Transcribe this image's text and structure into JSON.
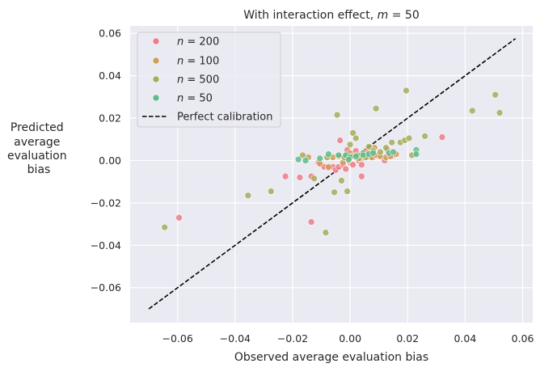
{
  "chart_data": {
    "type": "scatter",
    "title": "With interaction effect, m = 50",
    "title_prefix": "With interaction effect, ",
    "title_var": "m",
    "title_suffix": " = 50",
    "xlabel": "Observed average evaluation bias",
    "ylabel_lines": [
      "Predicted",
      "average",
      "evaluation",
      "bias"
    ],
    "xlim": [
      -0.0765,
      0.0635
    ],
    "ylim": [
      -0.0765,
      0.0635
    ],
    "xticks": [
      -0.06,
      -0.04,
      -0.02,
      0.0,
      0.02,
      0.04,
      0.06
    ],
    "xtick_labels": [
      "−0.06",
      "−0.04",
      "−0.02",
      "0.00",
      "0.02",
      "0.04",
      "0.06"
    ],
    "yticks": [
      -0.06,
      -0.04,
      -0.02,
      0.0,
      0.02,
      0.04,
      0.06
    ],
    "ytick_labels": [
      "−0.06",
      "−0.04",
      "−0.02",
      "0.00",
      "0.02",
      "0.04",
      "0.06"
    ],
    "grid": true,
    "legend_position": "upper-left",
    "calibration_line": {
      "label": "Perfect calibration",
      "color": "#000000",
      "x": [
        -0.07,
        0.0575
      ],
      "y": [
        -0.07,
        0.0575
      ]
    },
    "series": [
      {
        "name": "n = 200",
        "var": "n",
        "value_label": " = 200",
        "color": "#ec7d8b",
        "points": [
          [
            -0.0595,
            -0.027
          ],
          [
            -0.0225,
            -0.0075
          ],
          [
            -0.0175,
            -0.008
          ],
          [
            -0.0135,
            -0.029
          ],
          [
            -0.0135,
            -0.0075
          ],
          [
            -0.011,
            -0.001
          ],
          [
            -0.009,
            -0.003
          ],
          [
            -0.0075,
            -0.0035
          ],
          [
            -0.006,
            -0.003
          ],
          [
            -0.005,
            -0.0045
          ],
          [
            -0.004,
            -0.003
          ],
          [
            -0.0035,
            0.0095
          ],
          [
            -0.0025,
            -0.002
          ],
          [
            -0.0015,
            -0.004
          ],
          [
            -0.001,
            0.005
          ],
          [
            0.0,
            -0.001
          ],
          [
            0.001,
            -0.002
          ],
          [
            0.002,
            0.0045
          ],
          [
            0.003,
            0.0
          ],
          [
            0.004,
            -0.0075
          ],
          [
            0.0045,
            0.001
          ],
          [
            0.0055,
            0.0025
          ],
          [
            0.007,
            0.003
          ],
          [
            0.008,
            0.0015
          ],
          [
            0.01,
            0.002
          ],
          [
            0.012,
            0.0
          ],
          [
            0.013,
            0.005
          ],
          [
            0.0145,
            0.002
          ],
          [
            0.032,
            0.011
          ],
          [
            0.004,
            -0.002
          ],
          [
            -0.002,
            0.001
          ],
          [
            0.006,
            0.004
          ]
        ]
      },
      {
        "name": "n = 100",
        "var": "n",
        "value_label": " = 100",
        "color": "#d19b5a",
        "points": [
          [
            -0.0145,
            0.0015
          ],
          [
            -0.0105,
            -0.0015
          ],
          [
            -0.0075,
            -0.003
          ],
          [
            -0.006,
            0.0015
          ],
          [
            -0.004,
            0.002
          ],
          [
            -0.0025,
            -0.001
          ],
          [
            -0.0015,
            0.0025
          ],
          [
            0.0,
            0.0035
          ],
          [
            0.001,
            0.002
          ],
          [
            0.002,
            0.0015
          ],
          [
            0.0035,
            0.001
          ],
          [
            0.005,
            0.0015
          ],
          [
            0.006,
            0.0025
          ],
          [
            0.0075,
            0.0015
          ],
          [
            0.009,
            0.0025
          ],
          [
            0.0105,
            0.002
          ],
          [
            0.0125,
            0.0015
          ],
          [
            0.014,
            0.002
          ],
          [
            0.016,
            0.003
          ],
          [
            0.0225,
            0.003
          ],
          [
            0.0085,
            0.006
          ],
          [
            -0.0005,
            0.0
          ]
        ]
      },
      {
        "name": "n = 500",
        "var": "n",
        "value_label": " = 500",
        "color": "#a4ad5c",
        "points": [
          [
            -0.0645,
            -0.0315
          ],
          [
            -0.0355,
            -0.0165
          ],
          [
            -0.0275,
            -0.0145
          ],
          [
            -0.0165,
            0.0025
          ],
          [
            -0.0125,
            -0.0085
          ],
          [
            -0.0085,
            -0.034
          ],
          [
            -0.008,
            0.0015
          ],
          [
            -0.0055,
            -0.015
          ],
          [
            -0.0045,
            0.0215
          ],
          [
            -0.003,
            -0.0095
          ],
          [
            -0.002,
            0.0015
          ],
          [
            -0.001,
            -0.0145
          ],
          [
            0.0,
            0.0075
          ],
          [
            0.001,
            0.013
          ],
          [
            0.002,
            0.0105
          ],
          [
            0.003,
            0.001
          ],
          [
            0.0045,
            0.0035
          ],
          [
            0.0055,
            0.0015
          ],
          [
            0.0065,
            0.0065
          ],
          [
            0.008,
            0.0045
          ],
          [
            0.009,
            0.0245
          ],
          [
            0.0105,
            0.004
          ],
          [
            0.0125,
            0.006
          ],
          [
            0.0145,
            0.0085
          ],
          [
            0.0175,
            0.0085
          ],
          [
            0.019,
            0.0095
          ],
          [
            0.0195,
            0.033
          ],
          [
            0.0205,
            0.0105
          ],
          [
            0.026,
            0.0115
          ],
          [
            0.0425,
            0.0235
          ],
          [
            0.0505,
            0.031
          ],
          [
            0.052,
            0.0225
          ],
          [
            0.0025,
            0.0025
          ],
          [
            0.0215,
            0.0025
          ]
        ]
      },
      {
        "name": "n = 50",
        "var": "n",
        "value_label": " = 50",
        "color": "#5fbb8c",
        "points": [
          [
            -0.018,
            0.0005
          ],
          [
            -0.0155,
            0.0
          ],
          [
            -0.0105,
            0.001
          ],
          [
            -0.0075,
            0.003
          ],
          [
            -0.004,
            0.0025
          ],
          [
            -0.0015,
            0.0025
          ],
          [
            0.0,
            0.0015
          ],
          [
            0.002,
            0.002
          ],
          [
            0.0045,
            0.0025
          ],
          [
            0.0065,
            0.003
          ],
          [
            0.008,
            0.0035
          ],
          [
            0.0135,
            0.0035
          ],
          [
            0.015,
            0.004
          ],
          [
            0.023,
            0.005
          ],
          [
            0.023,
            0.003
          ],
          [
            -0.0005,
            0.0005
          ]
        ]
      }
    ]
  }
}
